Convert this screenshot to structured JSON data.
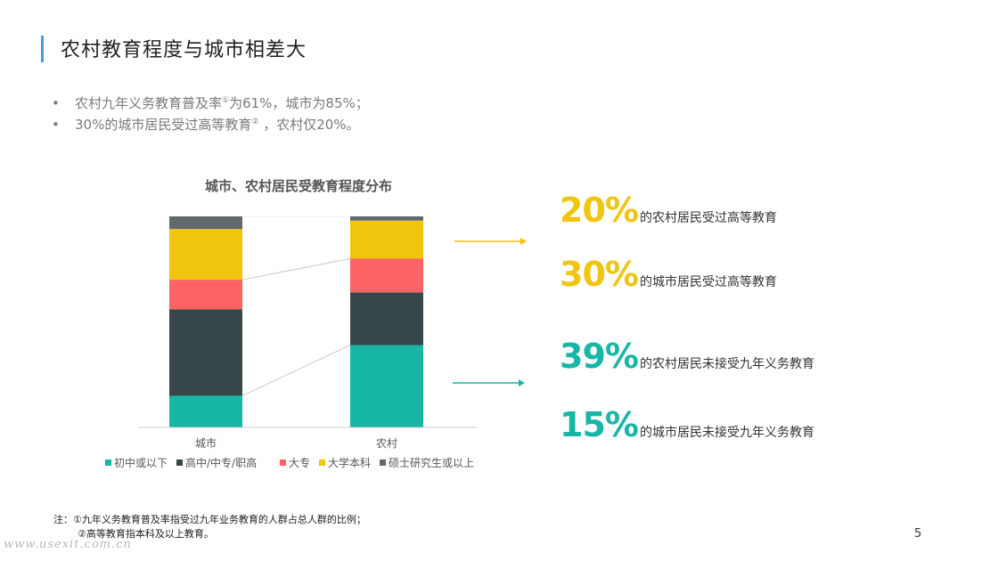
{
  "slide": {
    "title": "农村教育程度与城市相差大",
    "bullets": [
      {
        "pre": "农村九年义务教育普及率",
        "sup": "①",
        "post": "为61%，城市为85%；"
      },
      {
        "pre": "30%的城市居民受过高等教育",
        "sup": "②",
        "post": " ，农村仅20%。"
      }
    ],
    "stats": [
      {
        "value": "20%",
        "label": "的农村居民受过高等教育",
        "color": "#f1c40f"
      },
      {
        "value": "30%",
        "label": "的城市居民受过高等教育",
        "color": "#f1c40f"
      },
      {
        "value": "39%",
        "label": "的农村居民未接受九年义务教育",
        "color": "#17b6a7"
      },
      {
        "value": "15%",
        "label": "的城市居民未接受九年义务教育",
        "color": "#17b6a7"
      }
    ],
    "notes": [
      "注：①九年义务教育普及率指受过九年业务教育的人群占总人群的比例；",
      "②高等教育指本科及以上教育。"
    ],
    "watermark": "www.usexit.com.cn",
    "page_number": "5"
  },
  "chart_data": {
    "type": "bar",
    "stacked": true,
    "title": "城市、农村居民受教育程度分布",
    "categories": [
      "城市",
      "农村"
    ],
    "ylim": [
      0,
      100
    ],
    "series": [
      {
        "name": "初中或以下",
        "color": "#17b6a7",
        "values": [
          15,
          39
        ]
      },
      {
        "name": "高中/中专/职高",
        "color": "#37474a",
        "values": [
          41,
          25
        ]
      },
      {
        "name": "大专",
        "color": "#fb6364",
        "values": [
          14,
          16
        ]
      },
      {
        "name": "大学本科",
        "color": "#f1c410",
        "values": [
          24,
          18
        ]
      },
      {
        "name": "硕士研究生或以上",
        "color": "#606a6c",
        "values": [
          6,
          2
        ]
      }
    ],
    "grid": false,
    "legend": "bottom"
  }
}
